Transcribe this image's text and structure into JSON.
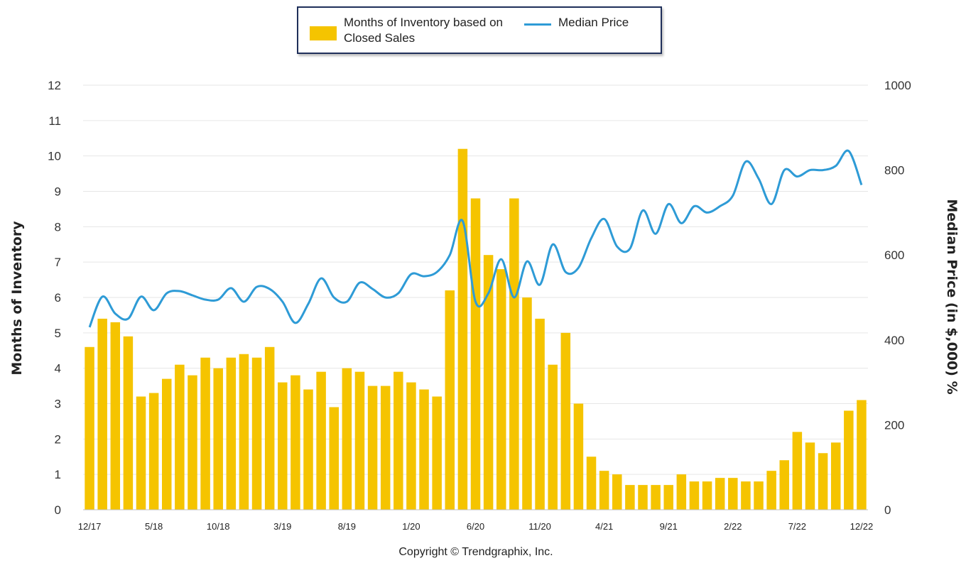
{
  "chart_data": {
    "type": "bar+line",
    "categories": [
      "12/17",
      "1/18",
      "2/18",
      "3/18",
      "4/18",
      "5/18",
      "6/18",
      "7/18",
      "8/18",
      "9/18",
      "10/18",
      "11/18",
      "12/18",
      "1/19",
      "2/19",
      "3/19",
      "4/19",
      "5/19",
      "6/19",
      "7/19",
      "8/19",
      "9/19",
      "10/19",
      "11/19",
      "12/19",
      "1/20",
      "2/20",
      "3/20",
      "4/20",
      "5/20",
      "6/20",
      "7/20",
      "8/20",
      "9/20",
      "10/20",
      "11/20",
      "12/20",
      "1/21",
      "2/21",
      "3/21",
      "4/21",
      "5/21",
      "6/21",
      "7/21",
      "8/21",
      "9/21",
      "10/21",
      "11/21",
      "12/21",
      "1/22",
      "2/22",
      "3/22",
      "4/22",
      "5/22",
      "6/22",
      "7/22",
      "8/22",
      "9/22",
      "10/22",
      "11/22",
      "12/22"
    ],
    "x_tick_labels": [
      "12/17",
      "5/18",
      "10/18",
      "3/19",
      "8/19",
      "1/20",
      "6/20",
      "11/20",
      "4/21",
      "9/21",
      "2/22",
      "7/22",
      "12/22"
    ],
    "series": [
      {
        "name": "Months of Inventory based on Closed Sales",
        "type": "bar",
        "axis": "left",
        "color": "#f5c400",
        "values": [
          4.6,
          5.4,
          5.3,
          4.9,
          3.2,
          3.3,
          3.7,
          4.1,
          3.8,
          4.3,
          4.0,
          4.3,
          4.4,
          4.3,
          4.6,
          3.6,
          3.8,
          3.4,
          3.9,
          2.9,
          4.0,
          3.9,
          3.5,
          3.5,
          3.9,
          3.6,
          3.4,
          3.2,
          6.2,
          10.2,
          8.8,
          7.2,
          6.8,
          8.8,
          6.0,
          5.4,
          4.1,
          5.0,
          3.0,
          1.5,
          1.1,
          1.0,
          0.7,
          0.7,
          0.7,
          0.7,
          1.0,
          0.8,
          0.8,
          0.9,
          0.9,
          0.8,
          0.8,
          1.1,
          1.4,
          2.2,
          1.9,
          1.6,
          1.9,
          2.8,
          3.1
        ]
      },
      {
        "name": "Median Price",
        "type": "line",
        "axis": "right",
        "color": "#2e9bd6",
        "values": [
          430,
          502,
          462,
          450,
          502,
          470,
          510,
          515,
          505,
          495,
          495,
          522,
          490,
          525,
          520,
          490,
          440,
          485,
          545,
          500,
          490,
          535,
          520,
          500,
          510,
          555,
          550,
          560,
          600,
          680,
          490,
          510,
          590,
          500,
          585,
          530,
          625,
          560,
          570,
          640,
          685,
          620,
          615,
          705,
          650,
          720,
          675,
          715,
          700,
          715,
          740,
          820,
          780,
          720,
          800,
          785,
          800,
          800,
          810,
          845,
          765
        ]
      }
    ],
    "yaxis_left": {
      "label": "Months of Inventory",
      "range": [
        0,
        12
      ],
      "ticks": [
        "0",
        "1",
        "2",
        "3",
        "4",
        "5",
        "6",
        "7",
        "8",
        "9",
        "10",
        "11",
        "12"
      ]
    },
    "yaxis_right": {
      "label": "Median Price (in $,000) %",
      "range": [
        0,
        1000
      ],
      "ticks": [
        "0",
        "200",
        "400",
        "600",
        "800",
        "1000"
      ]
    },
    "grid": true,
    "legend_position": "top-center"
  },
  "legend": {
    "bar_label": "Months of Inventory based on Closed Sales",
    "line_label": "Median Price"
  },
  "copyright": "Copyright © Trendgraphix, Inc."
}
